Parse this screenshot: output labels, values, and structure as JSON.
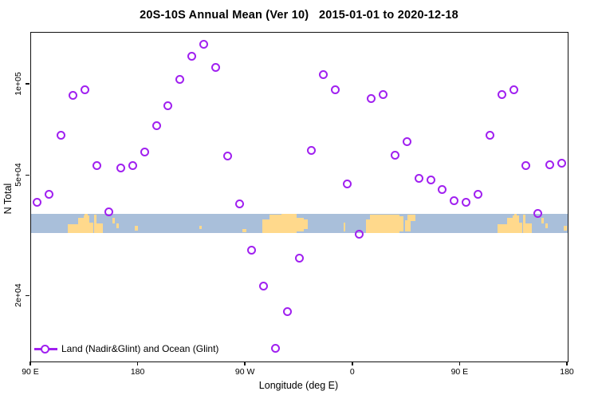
{
  "legend": {
    "label": "Land (Nadir&Glint) and Ocean (Glint)"
  },
  "colors": {
    "marker": "#A020F0",
    "ocean": "#A9BFDA",
    "land": "#FFD98C",
    "axis": "#111111",
    "background": "#FFFFFF"
  },
  "chart_data": {
    "type": "scatter",
    "title": "20S-10S Annual Mean (Ver 10)   2015-01-01 to 2020-12-18",
    "xlabel": "Longitude (deg E)",
    "ylabel": "N Total",
    "xscale": "linear",
    "yscale": "log",
    "x_axis_note": "longitude axis runs 90E through 180, 90W, 0 back to 180 (values 90..540 deg E, wrapping)",
    "xlim": [
      90,
      540
    ],
    "ylim": [
      12200,
      148300
    ],
    "grid": false,
    "legend_position": "bottom-left",
    "x_ticks": [
      {
        "lon": 90,
        "label": "90 E"
      },
      {
        "lon": 180,
        "label": "180"
      },
      {
        "lon": 270,
        "label": "90 W"
      },
      {
        "lon": 360,
        "label": "0"
      },
      {
        "lon": 450,
        "label": "90 E"
      },
      {
        "lon": 540,
        "label": "180"
      }
    ],
    "y_ticks": [
      {
        "value": 100000,
        "label": "1e+05"
      },
      {
        "value": 50000,
        "label": "5e+04"
      },
      {
        "value": 20000,
        "label": "2e+04"
      }
    ],
    "series_name": "Land (Nadir&Glint) and Ocean (Glint)",
    "points": [
      [
        95,
        41000
      ],
      [
        105,
        43500
      ],
      [
        115,
        68000
      ],
      [
        125,
        92000
      ],
      [
        135,
        96000
      ],
      [
        145,
        54000
      ],
      [
        155,
        38000
      ],
      [
        165,
        53000
      ],
      [
        175,
        54000
      ],
      [
        185,
        60000
      ],
      [
        195,
        73000
      ],
      [
        205,
        85000
      ],
      [
        215,
        104000
      ],
      [
        225,
        124000
      ],
      [
        235,
        136000
      ],
      [
        245,
        114000
      ],
      [
        255,
        58000
      ],
      [
        265,
        40500
      ],
      [
        275,
        28500
      ],
      [
        285,
        21600
      ],
      [
        295,
        13500
      ],
      [
        305,
        17800
      ],
      [
        315,
        26700
      ],
      [
        325,
        60500
      ],
      [
        335,
        108000
      ],
      [
        345,
        96000
      ],
      [
        355,
        47000
      ],
      [
        365,
        32000
      ],
      [
        375,
        90000
      ],
      [
        385,
        92500
      ],
      [
        395,
        58500
      ],
      [
        405,
        65000
      ],
      [
        415,
        49000
      ],
      [
        425,
        48500
      ],
      [
        435,
        45000
      ],
      [
        445,
        41500
      ],
      [
        455,
        41000
      ],
      [
        465,
        43500
      ],
      [
        475,
        68000
      ],
      [
        485,
        92500
      ],
      [
        495,
        96000
      ],
      [
        505,
        54000
      ],
      [
        515,
        37500
      ],
      [
        525,
        54500
      ],
      [
        535,
        55000
      ]
    ],
    "map_band": {
      "description": "20S-10S latitude strip world map drawn across plot",
      "value_top": 37500,
      "value_bottom": 32300,
      "land_patches": [
        [
          121.0,
          129.5,
          0.52,
          1.0
        ],
        [
          129.5,
          134.0,
          0.2,
          1.0
        ],
        [
          134.0,
          139.0,
          0.1,
          1.0
        ],
        [
          135.0,
          137.5,
          0.02,
          1.0
        ],
        [
          139.0,
          142.0,
          0.44,
          1.0
        ],
        [
          142.5,
          144.5,
          0.04,
          1.0
        ],
        [
          144.5,
          150.0,
          0.48,
          0.97
        ],
        [
          158.2,
          160.2,
          0.2,
          0.5
        ],
        [
          161.5,
          163.5,
          0.5,
          0.75
        ],
        [
          176.9,
          179.6,
          0.6,
          0.85
        ],
        [
          231.0,
          233.0,
          0.6,
          0.8
        ],
        [
          267.2,
          270.3,
          0.78,
          0.95
        ],
        [
          283.9,
          290.0,
          0.3,
          1.0
        ],
        [
          290.0,
          300.0,
          0.06,
          1.0
        ],
        [
          300.0,
          312.7,
          0.02,
          1.0
        ],
        [
          312.7,
          318.7,
          0.2,
          0.92
        ],
        [
          318.7,
          322.0,
          0.3,
          0.8
        ],
        [
          352.1,
          353.4,
          0.45,
          0.9
        ],
        [
          370.9,
          374.2,
          0.3,
          1.0
        ],
        [
          374.2,
          399.0,
          0.03,
          1.0
        ],
        [
          399.0,
          402.3,
          0.15,
          0.9
        ],
        [
          405.6,
          412.3,
          0.06,
          0.36
        ],
        [
          403.8,
          408.3,
          0.32,
          0.9
        ],
        [
          481.0,
          489.5,
          0.52,
          1.0
        ],
        [
          489.5,
          494.0,
          0.2,
          1.0
        ],
        [
          494.0,
          499.0,
          0.1,
          1.0
        ],
        [
          495.0,
          497.5,
          0.02,
          1.0
        ],
        [
          499.0,
          502.0,
          0.44,
          1.0
        ],
        [
          502.5,
          504.5,
          0.04,
          1.0
        ],
        [
          504.5,
          510.0,
          0.48,
          0.97
        ],
        [
          518.2,
          520.2,
          0.2,
          0.5
        ],
        [
          521.5,
          523.5,
          0.5,
          0.75
        ],
        [
          536.9,
          539.3,
          0.6,
          0.85
        ]
      ]
    }
  }
}
